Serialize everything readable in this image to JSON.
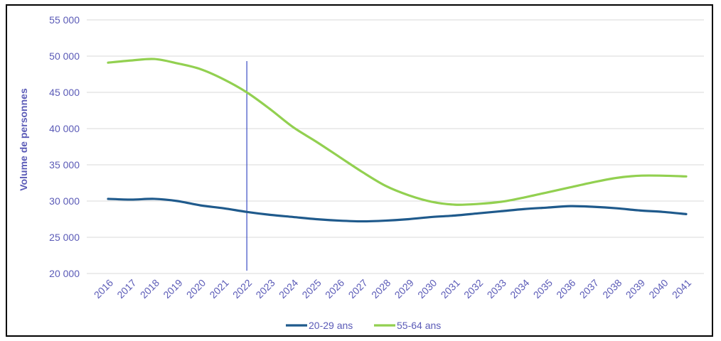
{
  "chart_data": {
    "type": "line",
    "title": "",
    "xlabel": "",
    "ylabel": "Volume de personnes",
    "ylim": [
      20000,
      55000
    ],
    "yticks": [
      20000,
      25000,
      30000,
      35000,
      40000,
      45000,
      50000,
      55000
    ],
    "ytick_labels": [
      "20 000",
      "25 000",
      "30 000",
      "35 000",
      "40 000",
      "45 000",
      "50 000",
      "55 000"
    ],
    "grid": true,
    "legend_position": "bottom",
    "x": [
      "2016",
      "2017",
      "2018",
      "2019",
      "2020",
      "2021",
      "2022",
      "2023",
      "2024",
      "2025",
      "2026",
      "2027",
      "2028",
      "2029",
      "2030",
      "2031",
      "2032",
      "2033",
      "2034",
      "2035",
      "2036",
      "2037",
      "2038",
      "2039",
      "2040",
      "2041"
    ],
    "series": [
      {
        "name": "20-29 ans",
        "color": "#1f5a8c",
        "values": [
          30300,
          30200,
          30300,
          30000,
          29400,
          29000,
          28500,
          28100,
          27800,
          27500,
          27300,
          27200,
          27300,
          27500,
          27800,
          28000,
          28300,
          28600,
          28900,
          29100,
          29300,
          29200,
          29000,
          28700,
          28500,
          28200
        ]
      },
      {
        "name": "55-64 ans",
        "color": "#92d050",
        "values": [
          49100,
          49400,
          49600,
          49000,
          48200,
          46800,
          45000,
          42700,
          40200,
          38200,
          36100,
          34000,
          32100,
          30800,
          29900,
          29500,
          29600,
          29900,
          30500,
          31200,
          31900,
          32600,
          33200,
          33500,
          33500,
          33400
        ]
      }
    ],
    "marker_line": {
      "x": "2022",
      "color": "#3a4bc4"
    }
  }
}
